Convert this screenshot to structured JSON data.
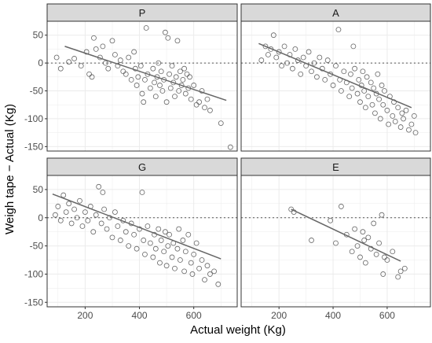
{
  "figure": {
    "xlabel": "Actual weight (Kg)",
    "ylabel": "Weigh tape − Actual (Kg)"
  },
  "colors": {
    "panel_bg": "#ffffff",
    "panel_border": "#333333",
    "grid": "#ebebeb",
    "strip_bg": "#d9d9d9",
    "point": "#555555",
    "fit_line": "#666666",
    "ref_line": "#555555"
  },
  "chart_data": [
    {
      "type": "scatter",
      "panel": "P",
      "xlabel": "Actual weight (Kg)",
      "ylabel": "Weigh tape − Actual (Kg)",
      "xlim": [
        60,
        760
      ],
      "ylim": [
        -158,
        75
      ],
      "xticks": [
        200,
        400,
        600
      ],
      "yticks": [
        -150,
        -100,
        -50,
        0,
        50
      ],
      "grid": true,
      "reference_line_y": 0,
      "fit": {
        "x": [
          125,
          720
        ],
        "y": [
          30,
          -67
        ]
      },
      "points": [
        {
          "x": 95,
          "y": 10
        },
        {
          "x": 110,
          "y": -10
        },
        {
          "x": 140,
          "y": 2
        },
        {
          "x": 160,
          "y": 8
        },
        {
          "x": 185,
          "y": -5
        },
        {
          "x": 205,
          "y": 20
        },
        {
          "x": 215,
          "y": -20
        },
        {
          "x": 225,
          "y": -25
        },
        {
          "x": 232,
          "y": 45
        },
        {
          "x": 240,
          "y": 25
        },
        {
          "x": 255,
          "y": 10
        },
        {
          "x": 265,
          "y": 30
        },
        {
          "x": 275,
          "y": 0
        },
        {
          "x": 285,
          "y": -10
        },
        {
          "x": 300,
          "y": 40
        },
        {
          "x": 310,
          "y": 15
        },
        {
          "x": 320,
          "y": -5
        },
        {
          "x": 330,
          "y": 5
        },
        {
          "x": 340,
          "y": -15
        },
        {
          "x": 350,
          "y": -20
        },
        {
          "x": 360,
          "y": 10
        },
        {
          "x": 370,
          "y": -30
        },
        {
          "x": 380,
          "y": 20
        },
        {
          "x": 385,
          "y": -10
        },
        {
          "x": 390,
          "y": -40
        },
        {
          "x": 395,
          "y": -25
        },
        {
          "x": 405,
          "y": -5
        },
        {
          "x": 410,
          "y": -55
        },
        {
          "x": 415,
          "y": -70
        },
        {
          "x": 420,
          "y": -30
        },
        {
          "x": 425,
          "y": 63
        },
        {
          "x": 430,
          "y": -20
        },
        {
          "x": 440,
          "y": -45
        },
        {
          "x": 450,
          "y": -10
        },
        {
          "x": 455,
          "y": -35
        },
        {
          "x": 460,
          "y": -60
        },
        {
          "x": 465,
          "y": -25
        },
        {
          "x": 470,
          "y": 0
        },
        {
          "x": 475,
          "y": -40
        },
        {
          "x": 480,
          "y": -15
        },
        {
          "x": 485,
          "y": -50
        },
        {
          "x": 490,
          "y": -30
        },
        {
          "x": 495,
          "y": 55
        },
        {
          "x": 500,
          "y": -70
        },
        {
          "x": 505,
          "y": 45
        },
        {
          "x": 510,
          "y": -20
        },
        {
          "x": 515,
          "y": -45
        },
        {
          "x": 520,
          "y": -5
        },
        {
          "x": 525,
          "y": -35
        },
        {
          "x": 530,
          "y": -60
        },
        {
          "x": 535,
          "y": -25
        },
        {
          "x": 540,
          "y": 40
        },
        {
          "x": 545,
          "y": -50
        },
        {
          "x": 550,
          "y": -15
        },
        {
          "x": 555,
          "y": -40
        },
        {
          "x": 560,
          "y": -30
        },
        {
          "x": 565,
          "y": -10
        },
        {
          "x": 570,
          "y": -55
        },
        {
          "x": 575,
          "y": -20
        },
        {
          "x": 580,
          "y": -45
        },
        {
          "x": 585,
          "y": -25
        },
        {
          "x": 590,
          "y": -65
        },
        {
          "x": 600,
          "y": -40
        },
        {
          "x": 610,
          "y": -75
        },
        {
          "x": 620,
          "y": -70
        },
        {
          "x": 630,
          "y": -50
        },
        {
          "x": 640,
          "y": -80
        },
        {
          "x": 650,
          "y": -65
        },
        {
          "x": 660,
          "y": -85
        },
        {
          "x": 700,
          "y": -108
        },
        {
          "x": 735,
          "y": -151
        }
      ]
    },
    {
      "type": "scatter",
      "panel": "A",
      "xlabel": "Actual weight (Kg)",
      "ylabel": "Weigh tape − Actual (Kg)",
      "xlim": [
        60,
        760
      ],
      "ylim": [
        -158,
        75
      ],
      "xticks": [
        200,
        400,
        600
      ],
      "yticks": [
        -150,
        -100,
        -50,
        0,
        50
      ],
      "grid": true,
      "reference_line_y": 0,
      "fit": {
        "x": [
          125,
          690
        ],
        "y": [
          35,
          -80
        ]
      },
      "points": [
        {
          "x": 135,
          "y": 5
        },
        {
          "x": 150,
          "y": 30
        },
        {
          "x": 160,
          "y": 15
        },
        {
          "x": 170,
          "y": 25
        },
        {
          "x": 180,
          "y": 50
        },
        {
          "x": 190,
          "y": 10
        },
        {
          "x": 200,
          "y": 20
        },
        {
          "x": 210,
          "y": -5
        },
        {
          "x": 220,
          "y": 30
        },
        {
          "x": 230,
          "y": 0
        },
        {
          "x": 240,
          "y": 15
        },
        {
          "x": 250,
          "y": -10
        },
        {
          "x": 260,
          "y": 25
        },
        {
          "x": 270,
          "y": 5
        },
        {
          "x": 280,
          "y": -20
        },
        {
          "x": 290,
          "y": 10
        },
        {
          "x": 300,
          "y": -5
        },
        {
          "x": 310,
          "y": 20
        },
        {
          "x": 320,
          "y": -15
        },
        {
          "x": 330,
          "y": 0
        },
        {
          "x": 340,
          "y": -25
        },
        {
          "x": 350,
          "y": 10
        },
        {
          "x": 360,
          "y": -10
        },
        {
          "x": 370,
          "y": -30
        },
        {
          "x": 380,
          "y": 5
        },
        {
          "x": 390,
          "y": -20
        },
        {
          "x": 400,
          "y": -40
        },
        {
          "x": 410,
          "y": -5
        },
        {
          "x": 420,
          "y": 60
        },
        {
          "x": 425,
          "y": -30
        },
        {
          "x": 430,
          "y": -50
        },
        {
          "x": 440,
          "y": -15
        },
        {
          "x": 450,
          "y": -35
        },
        {
          "x": 460,
          "y": -60
        },
        {
          "x": 465,
          "y": -20
        },
        {
          "x": 470,
          "y": -45
        },
        {
          "x": 475,
          "y": 30
        },
        {
          "x": 480,
          "y": -10
        },
        {
          "x": 490,
          "y": -55
        },
        {
          "x": 495,
          "y": -30
        },
        {
          "x": 500,
          "y": -70
        },
        {
          "x": 505,
          "y": -40
        },
        {
          "x": 510,
          "y": -15
        },
        {
          "x": 515,
          "y": -50
        },
        {
          "x": 520,
          "y": -80
        },
        {
          "x": 525,
          "y": -25
        },
        {
          "x": 530,
          "y": -60
        },
        {
          "x": 540,
          "y": -35
        },
        {
          "x": 545,
          "y": -75
        },
        {
          "x": 550,
          "y": -45
        },
        {
          "x": 555,
          "y": -90
        },
        {
          "x": 560,
          "y": -55
        },
        {
          "x": 565,
          "y": -20
        },
        {
          "x": 570,
          "y": -65
        },
        {
          "x": 575,
          "y": -100
        },
        {
          "x": 580,
          "y": -40
        },
        {
          "x": 585,
          "y": -75
        },
        {
          "x": 590,
          "y": -50
        },
        {
          "x": 600,
          "y": -85
        },
        {
          "x": 605,
          "y": -110
        },
        {
          "x": 610,
          "y": -60
        },
        {
          "x": 620,
          "y": -95
        },
        {
          "x": 625,
          "y": -70
        },
        {
          "x": 630,
          "y": -105
        },
        {
          "x": 640,
          "y": -80
        },
        {
          "x": 650,
          "y": -115
        },
        {
          "x": 655,
          "y": -90
        },
        {
          "x": 660,
          "y": -100
        },
        {
          "x": 670,
          "y": -85
        },
        {
          "x": 680,
          "y": -120
        },
        {
          "x": 690,
          "y": -110
        },
        {
          "x": 700,
          "y": -95
        },
        {
          "x": 705,
          "y": -125
        }
      ]
    },
    {
      "type": "scatter",
      "panel": "G",
      "xlabel": "Actual weight (Kg)",
      "ylabel": "Weigh tape − Actual (Kg)",
      "xlim": [
        60,
        760
      ],
      "ylim": [
        -158,
        75
      ],
      "xticks": [
        200,
        400,
        600
      ],
      "yticks": [
        -150,
        -100,
        -50,
        0,
        50
      ],
      "grid": true,
      "reference_line_y": 0,
      "fit": {
        "x": [
          80,
          700
        ],
        "y": [
          42,
          -73
        ]
      },
      "points": [
        {
          "x": 90,
          "y": 5
        },
        {
          "x": 100,
          "y": 20
        },
        {
          "x": 110,
          "y": -5
        },
        {
          "x": 120,
          "y": 40
        },
        {
          "x": 130,
          "y": 10
        },
        {
          "x": 140,
          "y": 25
        },
        {
          "x": 150,
          "y": -10
        },
        {
          "x": 160,
          "y": 15
        },
        {
          "x": 170,
          "y": 0
        },
        {
          "x": 180,
          "y": 30
        },
        {
          "x": 190,
          "y": -15
        },
        {
          "x": 200,
          "y": 10
        },
        {
          "x": 210,
          "y": -5
        },
        {
          "x": 220,
          "y": 20
        },
        {
          "x": 230,
          "y": -25
        },
        {
          "x": 240,
          "y": 5
        },
        {
          "x": 250,
          "y": 55
        },
        {
          "x": 260,
          "y": -10
        },
        {
          "x": 265,
          "y": 45
        },
        {
          "x": 270,
          "y": 15
        },
        {
          "x": 280,
          "y": -20
        },
        {
          "x": 290,
          "y": 0
        },
        {
          "x": 300,
          "y": -35
        },
        {
          "x": 310,
          "y": 10
        },
        {
          "x": 320,
          "y": -15
        },
        {
          "x": 330,
          "y": -40
        },
        {
          "x": 340,
          "y": -5
        },
        {
          "x": 350,
          "y": -25
        },
        {
          "x": 360,
          "y": -50
        },
        {
          "x": 370,
          "y": -10
        },
        {
          "x": 380,
          "y": -30
        },
        {
          "x": 390,
          "y": -55
        },
        {
          "x": 400,
          "y": -20
        },
        {
          "x": 410,
          "y": 45
        },
        {
          "x": 415,
          "y": -40
        },
        {
          "x": 420,
          "y": -65
        },
        {
          "x": 430,
          "y": -15
        },
        {
          "x": 440,
          "y": -45
        },
        {
          "x": 450,
          "y": -70
        },
        {
          "x": 455,
          "y": -30
        },
        {
          "x": 460,
          "y": -55
        },
        {
          "x": 470,
          "y": -20
        },
        {
          "x": 475,
          "y": -80
        },
        {
          "x": 480,
          "y": -40
        },
        {
          "x": 490,
          "y": -60
        },
        {
          "x": 495,
          "y": -25
        },
        {
          "x": 500,
          "y": -85
        },
        {
          "x": 505,
          "y": -50
        },
        {
          "x": 510,
          "y": -30
        },
        {
          "x": 520,
          "y": -70
        },
        {
          "x": 525,
          "y": -45
        },
        {
          "x": 530,
          "y": -90
        },
        {
          "x": 540,
          "y": -55
        },
        {
          "x": 545,
          "y": -20
        },
        {
          "x": 550,
          "y": -75
        },
        {
          "x": 560,
          "y": -40
        },
        {
          "x": 565,
          "y": -95
        },
        {
          "x": 570,
          "y": -60
        },
        {
          "x": 580,
          "y": -30
        },
        {
          "x": 590,
          "y": -80
        },
        {
          "x": 595,
          "y": -100
        },
        {
          "x": 600,
          "y": -65
        },
        {
          "x": 610,
          "y": -45
        },
        {
          "x": 620,
          "y": -90
        },
        {
          "x": 630,
          "y": -75
        },
        {
          "x": 640,
          "y": -110
        },
        {
          "x": 650,
          "y": -85
        },
        {
          "x": 660,
          "y": -100
        },
        {
          "x": 675,
          "y": -95
        },
        {
          "x": 690,
          "y": -118
        }
      ]
    },
    {
      "type": "scatter",
      "panel": "E",
      "xlabel": "Actual weight (Kg)",
      "ylabel": "Weigh tape − Actual (Kg)",
      "xlim": [
        60,
        760
      ],
      "ylim": [
        -158,
        75
      ],
      "xticks": [
        200,
        400,
        600
      ],
      "yticks": [
        -150,
        -100,
        -50,
        0,
        50
      ],
      "grid": true,
      "reference_line_y": 0,
      "fit": {
        "x": [
          245,
          650
        ],
        "y": [
          15,
          -77
        ]
      },
      "points": [
        {
          "x": 245,
          "y": 15
        },
        {
          "x": 255,
          "y": 10
        },
        {
          "x": 320,
          "y": -40
        },
        {
          "x": 390,
          "y": -5
        },
        {
          "x": 410,
          "y": -45
        },
        {
          "x": 430,
          "y": 20
        },
        {
          "x": 450,
          "y": -30
        },
        {
          "x": 470,
          "y": -60
        },
        {
          "x": 480,
          "y": -20
        },
        {
          "x": 490,
          "y": -50
        },
        {
          "x": 500,
          "y": -70
        },
        {
          "x": 510,
          "y": -25
        },
        {
          "x": 515,
          "y": -40
        },
        {
          "x": 520,
          "y": -80
        },
        {
          "x": 530,
          "y": -35
        },
        {
          "x": 540,
          "y": -55
        },
        {
          "x": 550,
          "y": -10
        },
        {
          "x": 560,
          "y": -65
        },
        {
          "x": 570,
          "y": -45
        },
        {
          "x": 580,
          "y": 5
        },
        {
          "x": 585,
          "y": -100
        },
        {
          "x": 590,
          "y": -70
        },
        {
          "x": 600,
          "y": -75
        },
        {
          "x": 620,
          "y": -60
        },
        {
          "x": 640,
          "y": -105
        },
        {
          "x": 650,
          "y": -95
        },
        {
          "x": 665,
          "y": -90
        }
      ]
    }
  ]
}
